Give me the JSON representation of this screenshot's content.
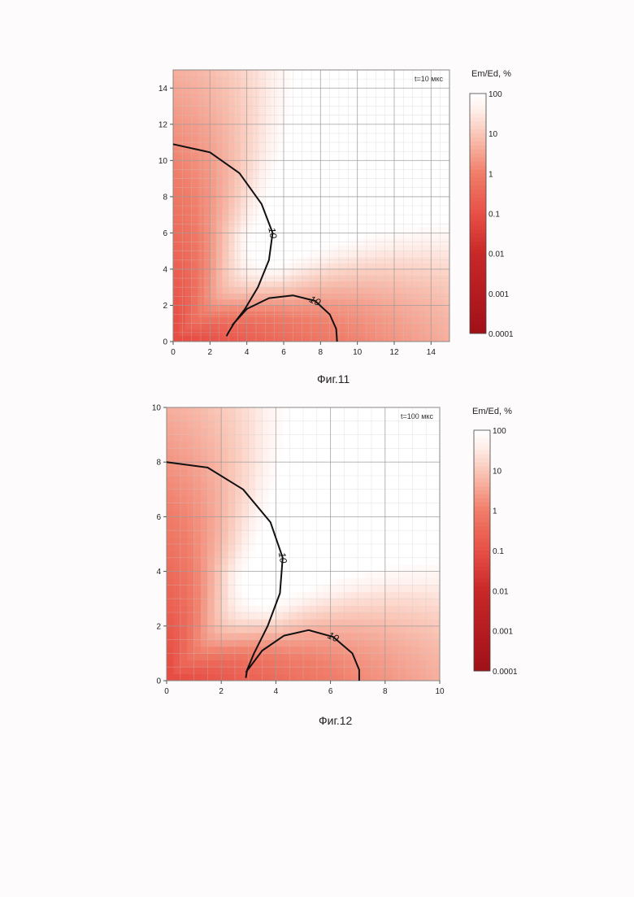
{
  "chart_data": [
    {
      "type": "heatmap",
      "caption": "Фиг.11",
      "time_label": "t=10 мкс",
      "xlim": [
        0,
        15
      ],
      "ylim": [
        0,
        15
      ],
      "xticks": [
        "0",
        "2",
        "4",
        "6",
        "8",
        "10",
        "12",
        "14"
      ],
      "yticks": [
        "0",
        "2",
        "4",
        "6",
        "8",
        "10",
        "12",
        "14"
      ],
      "grid": true,
      "colorbar": {
        "title": "Em/Ed, %",
        "scale": "log",
        "labels": [
          "100",
          "10",
          "1",
          "0.1",
          "0.01",
          "0.001",
          "0.0001"
        ],
        "placement": "right"
      },
      "contour_level": "10",
      "contours": [
        {
          "label": "10",
          "points": [
            [
              0,
              10.9
            ],
            [
              2.0,
              10.45
            ],
            [
              3.6,
              9.3
            ],
            [
              4.8,
              7.6
            ],
            [
              5.4,
              6.0
            ],
            [
              5.2,
              4.5
            ],
            [
              4.6,
              3.0
            ],
            [
              3.9,
              1.8
            ],
            [
              3.3,
              1.0
            ],
            [
              3.0,
              0.5
            ],
            [
              2.9,
              0.3
            ]
          ]
        },
        {
          "label": "10",
          "points": [
            [
              3.2,
              0.9
            ],
            [
              4.0,
              1.8
            ],
            [
              5.2,
              2.4
            ],
            [
              6.5,
              2.55
            ],
            [
              7.7,
              2.25
            ],
            [
              8.5,
              1.5
            ],
            [
              8.85,
              0.7
            ],
            [
              8.9,
              0
            ]
          ]
        }
      ]
    },
    {
      "type": "heatmap",
      "caption": "Фиг.12",
      "time_label": "t=100 мкс",
      "xlim": [
        0,
        10
      ],
      "ylim": [
        0,
        10
      ],
      "xticks": [
        "0",
        "2",
        "4",
        "6",
        "8",
        "10"
      ],
      "yticks": [
        "0",
        "2",
        "4",
        "6",
        "8",
        "10"
      ],
      "grid": true,
      "colorbar": {
        "title": "Em/Ed, %",
        "scale": "log",
        "labels": [
          "100",
          "10",
          "1",
          "0.1",
          "0.01",
          "0.001",
          "0.0001"
        ],
        "placement": "right"
      },
      "contour_level": "10",
      "contours": [
        {
          "label": "10",
          "points": [
            [
              0,
              8.0
            ],
            [
              1.5,
              7.8
            ],
            [
              2.8,
              7.0
            ],
            [
              3.8,
              5.8
            ],
            [
              4.25,
              4.5
            ],
            [
              4.15,
              3.2
            ],
            [
              3.7,
              2.0
            ],
            [
              3.2,
              1.0
            ],
            [
              2.95,
              0.4
            ],
            [
              2.9,
              0.1
            ]
          ]
        },
        {
          "label": "10",
          "points": [
            [
              2.9,
              0.3
            ],
            [
              3.5,
              1.1
            ],
            [
              4.3,
              1.65
            ],
            [
              5.2,
              1.85
            ],
            [
              6.1,
              1.6
            ],
            [
              6.8,
              1.0
            ],
            [
              7.05,
              0.4
            ],
            [
              7.05,
              0
            ]
          ]
        }
      ]
    }
  ]
}
